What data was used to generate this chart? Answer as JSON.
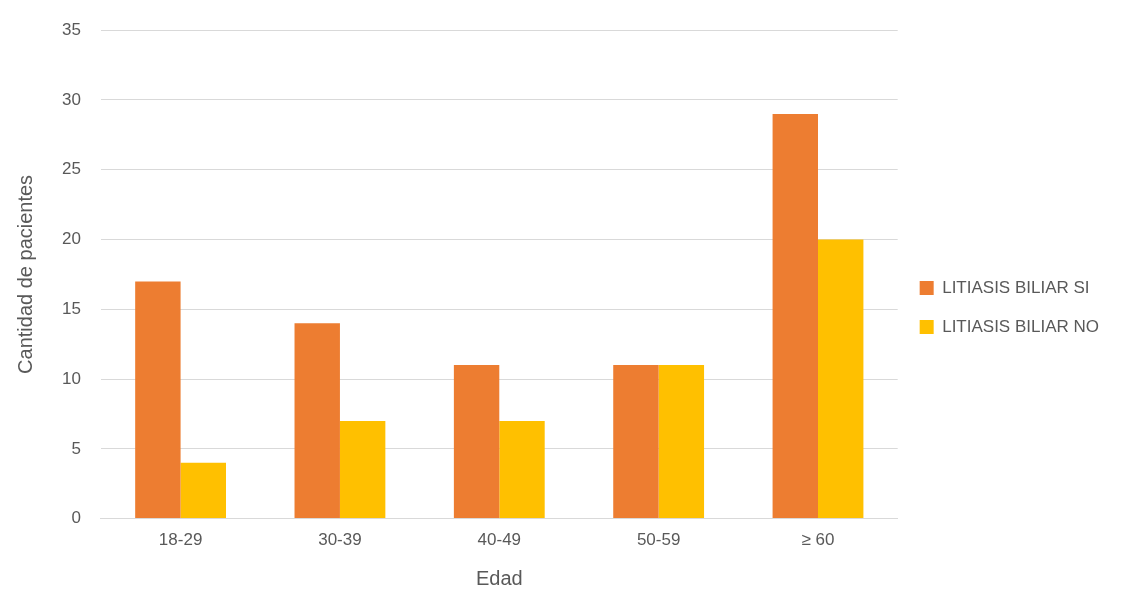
{
  "chart_data": {
    "type": "bar",
    "xlabel": "Edad",
    "ylabel": "Cantidad de pacientes",
    "categories": [
      "18-29",
      "30-39",
      "40-49",
      "50-59",
      "≥ 60"
    ],
    "series": [
      {
        "name": "LITIASIS BILIAR SI",
        "color": "#ed7d31",
        "values": [
          17,
          14,
          11,
          11,
          29
        ]
      },
      {
        "name": "LITIASIS BILIAR NO",
        "color": "#ffc000",
        "values": [
          4,
          7,
          7,
          11,
          20
        ]
      }
    ],
    "ylim": [
      0,
      35
    ],
    "yticks": [
      0,
      5,
      10,
      15,
      20,
      25,
      30,
      35
    ],
    "grid": "y",
    "legend": "right"
  }
}
